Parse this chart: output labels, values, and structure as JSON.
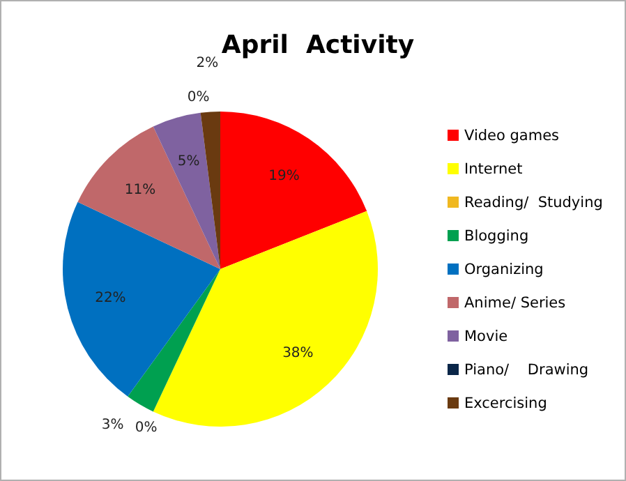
{
  "chart_data": {
    "type": "pie",
    "title": "April  Activity",
    "categories": [
      "Video games",
      "Internet",
      "Reading/  Studying",
      "Blogging",
      "Organizing",
      "Anime/ Series",
      "Movie",
      "Piano/    Drawing",
      "Excercising"
    ],
    "values": [
      19,
      38,
      0,
      3,
      22,
      11,
      5,
      0,
      2
    ],
    "colors": [
      "#ff0000",
      "#ffff00",
      "#f0b820",
      "#00a050",
      "#0070c0",
      "#c0686a",
      "#7f62a0",
      "#0a2648",
      "#6a3a10"
    ],
    "value_labels": [
      "19%",
      "38%",
      "0%",
      "3%",
      "22%",
      "11%",
      "5%",
      "0%",
      "2%"
    ],
    "legend": "right"
  }
}
